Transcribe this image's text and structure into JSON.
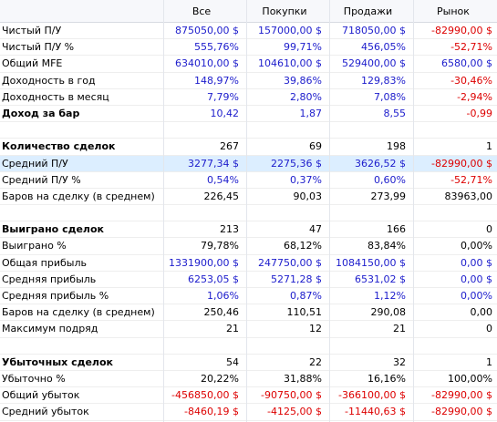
{
  "colors": {
    "positive": "#1c1ccc",
    "negative": "#dd0000",
    "selected_row": "#dceeff"
  },
  "header": {
    "label": "",
    "columns": [
      "Все",
      "Покупки",
      "Продажи",
      "Рынок"
    ]
  },
  "rows": [
    {
      "type": "data",
      "label": "Чистый П/У",
      "values": [
        "875050,00 $",
        "157000,00 $",
        "718050,00 $",
        "-82990,00 $"
      ],
      "colors": [
        "blue",
        "blue",
        "blue",
        "red"
      ]
    },
    {
      "type": "data",
      "label": "Чистый П/У %",
      "values": [
        "555,76%",
        "99,71%",
        "456,05%",
        "-52,71%"
      ],
      "colors": [
        "blue",
        "blue",
        "blue",
        "red"
      ]
    },
    {
      "type": "data",
      "label": "Общий MFE",
      "values": [
        "634010,00 $",
        "104610,00 $",
        "529400,00 $",
        "6580,00 $"
      ],
      "colors": [
        "blue",
        "blue",
        "blue",
        "blue"
      ]
    },
    {
      "type": "data",
      "label": "Доходность в год",
      "values": [
        "148,97%",
        "39,86%",
        "129,83%",
        "-30,46%"
      ],
      "colors": [
        "blue",
        "blue",
        "blue",
        "red"
      ]
    },
    {
      "type": "data",
      "label": "Доходность в месяц",
      "values": [
        "7,79%",
        "2,80%",
        "7,08%",
        "-2,94%"
      ],
      "colors": [
        "blue",
        "blue",
        "blue",
        "red"
      ]
    },
    {
      "type": "data",
      "bold": true,
      "label": "Доход за бар",
      "values": [
        "10,42",
        "1,87",
        "8,55",
        "-0,99"
      ],
      "colors": [
        "blue",
        "blue",
        "blue",
        "red"
      ]
    },
    {
      "type": "spacer"
    },
    {
      "type": "data",
      "bold": true,
      "label": "Количество сделок",
      "values": [
        "267",
        "69",
        "198",
        "1"
      ],
      "colors": [
        "black",
        "black",
        "black",
        "black"
      ]
    },
    {
      "type": "data",
      "selected": true,
      "label": "Средний П/У",
      "values": [
        "3277,34 $",
        "2275,36 $",
        "3626,52 $",
        "-82990,00 $"
      ],
      "colors": [
        "blue",
        "blue",
        "blue",
        "red"
      ]
    },
    {
      "type": "data",
      "label": "Средний П/У %",
      "values": [
        "0,54%",
        "0,37%",
        "0,60%",
        "-52,71%"
      ],
      "colors": [
        "blue",
        "blue",
        "blue",
        "red"
      ]
    },
    {
      "type": "data",
      "label": "Баров на сделку (в среднем)",
      "values": [
        "226,45",
        "90,03",
        "273,99",
        "83963,00"
      ],
      "colors": [
        "black",
        "black",
        "black",
        "black"
      ]
    },
    {
      "type": "spacer"
    },
    {
      "type": "data",
      "bold": true,
      "label": "Выиграно сделок",
      "values": [
        "213",
        "47",
        "166",
        "0"
      ],
      "colors": [
        "black",
        "black",
        "black",
        "black"
      ]
    },
    {
      "type": "data",
      "label": "Выиграно %",
      "values": [
        "79,78%",
        "68,12%",
        "83,84%",
        "0,00%"
      ],
      "colors": [
        "black",
        "black",
        "black",
        "black"
      ]
    },
    {
      "type": "data",
      "label": "Общая прибыль",
      "values": [
        "1331900,00 $",
        "247750,00 $",
        "1084150,00 $",
        "0,00 $"
      ],
      "colors": [
        "blue",
        "blue",
        "blue",
        "blue"
      ]
    },
    {
      "type": "data",
      "label": "Средняя прибыль",
      "values": [
        "6253,05 $",
        "5271,28 $",
        "6531,02 $",
        "0,00 $"
      ],
      "colors": [
        "blue",
        "blue",
        "blue",
        "blue"
      ]
    },
    {
      "type": "data",
      "label": "Средняя прибыль %",
      "values": [
        "1,06%",
        "0,87%",
        "1,12%",
        "0,00%"
      ],
      "colors": [
        "blue",
        "blue",
        "blue",
        "blue"
      ]
    },
    {
      "type": "data",
      "label": "Баров на сделку (в среднем)",
      "values": [
        "250,46",
        "110,51",
        "290,08",
        "0,00"
      ],
      "colors": [
        "black",
        "black",
        "black",
        "black"
      ]
    },
    {
      "type": "data",
      "label": "Максимум подряд",
      "values": [
        "21",
        "12",
        "21",
        "0"
      ],
      "colors": [
        "black",
        "black",
        "black",
        "black"
      ]
    },
    {
      "type": "spacer"
    },
    {
      "type": "data",
      "bold": true,
      "label": "Убыточных сделок",
      "values": [
        "54",
        "22",
        "32",
        "1"
      ],
      "colors": [
        "black",
        "black",
        "black",
        "black"
      ]
    },
    {
      "type": "data",
      "label": "Убыточно %",
      "values": [
        "20,22%",
        "31,88%",
        "16,16%",
        "100,00%"
      ],
      "colors": [
        "black",
        "black",
        "black",
        "black"
      ]
    },
    {
      "type": "data",
      "label": "Общий убыток",
      "values": [
        "-456850,00 $",
        "-90750,00 $",
        "-366100,00 $",
        "-82990,00 $"
      ],
      "colors": [
        "red",
        "red",
        "red",
        "red"
      ]
    },
    {
      "type": "data",
      "label": "Средний убыток",
      "values": [
        "-8460,19 $",
        "-4125,00 $",
        "-11440,63 $",
        "-82990,00 $"
      ],
      "colors": [
        "red",
        "red",
        "red",
        "red"
      ]
    }
  ]
}
